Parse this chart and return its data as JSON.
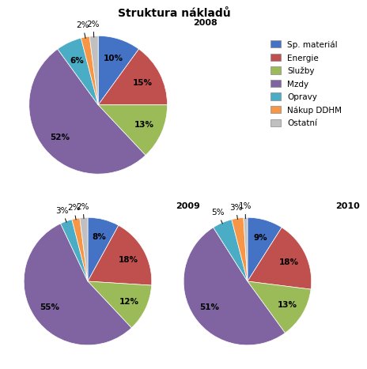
{
  "title": "Struktura nákladů",
  "legend_labels": [
    "Sp. materiál",
    "Energie",
    "Služby",
    "Mzdy",
    "Opravy",
    "Nákup DDHM",
    "Ostatní"
  ],
  "colors": [
    "#4472C4",
    "#C0504D",
    "#9BBB59",
    "#8064A2",
    "#4BACC6",
    "#F79646",
    "#C0C0C0"
  ],
  "charts": [
    {
      "year": "2008",
      "values": [
        10,
        15,
        13,
        52,
        6,
        2,
        2
      ]
    },
    {
      "year": "2009",
      "values": [
        8,
        18,
        12,
        55,
        3,
        2,
        2
      ]
    },
    {
      "year": "2010",
      "values": [
        9,
        18,
        13,
        51,
        5,
        3,
        1
      ]
    }
  ],
  "label_fontsize": 7.5,
  "legend_fontsize": 7.5,
  "title_fontsize": 10
}
